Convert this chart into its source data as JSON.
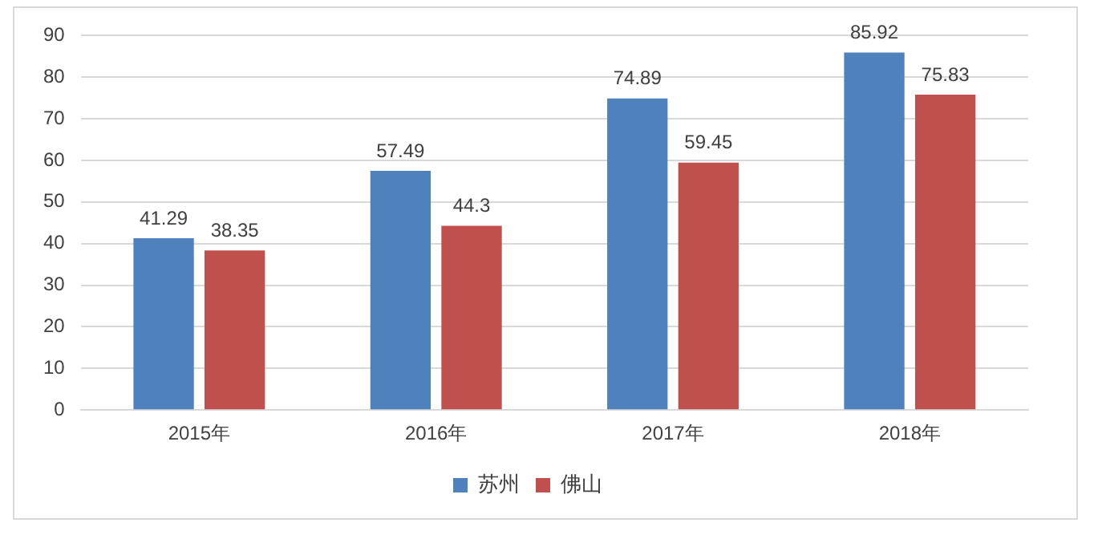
{
  "chart_data": {
    "type": "bar",
    "categories": [
      "2015年",
      "2016年",
      "2017年",
      "2018年"
    ],
    "series": [
      {
        "name": "苏州",
        "color": "#4f81bd",
        "values": [
          41.29,
          57.49,
          74.89,
          85.92
        ]
      },
      {
        "name": "佛山",
        "color": "#c0504d",
        "values": [
          38.35,
          44.3,
          59.45,
          75.83
        ]
      }
    ],
    "ylim": [
      0,
      90
    ],
    "yticks": [
      0,
      10,
      20,
      30,
      40,
      50,
      60,
      70,
      80,
      90
    ],
    "grid": "y",
    "legend": "bottom",
    "data_labels": true
  }
}
